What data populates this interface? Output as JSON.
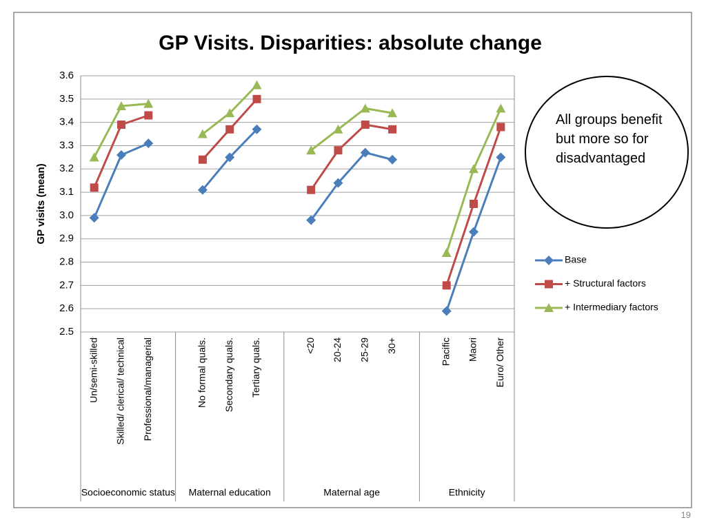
{
  "chart_data": {
    "type": "line",
    "title": "GP Visits. Disparities: absolute change",
    "y_label": "GP visits (mean)",
    "annotation": "All groups benefit but more so for disadvantaged",
    "page_number": "19",
    "categories": [
      "Un/semi-skilled",
      "Skilled/ clerical/ technical",
      "Professional/managerial",
      null,
      "No formal quals.",
      "Secondary quals.",
      "Tertiary quals.",
      null,
      "<20",
      "20-24",
      "25-29",
      "30+",
      null,
      "Pacific",
      "Maori",
      "Euro/ Other"
    ],
    "groups": [
      "Socioeconomic status",
      "Maternal education",
      "Maternal age",
      "Ethnicity"
    ],
    "series": [
      {
        "name": "Base",
        "color": "#4a7ebb",
        "marker": "diamond",
        "values": [
          2.99,
          3.26,
          3.31,
          null,
          3.11,
          3.25,
          3.37,
          null,
          2.98,
          3.14,
          3.27,
          3.24,
          null,
          2.59,
          2.93,
          3.25
        ]
      },
      {
        "name": "+ Structural factors",
        "color": "#be4b48",
        "marker": "square",
        "values": [
          3.12,
          3.39,
          3.43,
          null,
          3.24,
          3.37,
          3.5,
          null,
          3.11,
          3.28,
          3.39,
          3.37,
          null,
          2.7,
          3.05,
          3.38
        ]
      },
      {
        "name": "+ Intermediary factors",
        "color": "#98b954",
        "marker": "triangle",
        "values": [
          3.25,
          3.47,
          3.48,
          null,
          3.35,
          3.44,
          3.56,
          null,
          3.28,
          3.37,
          3.46,
          3.44,
          null,
          2.84,
          3.2,
          3.46
        ]
      }
    ],
    "ylim": [
      2.5,
      3.6
    ],
    "yticks": [
      2.5,
      2.6,
      2.7,
      2.8,
      2.9,
      {
        "value": 3.0,
        "label": "3.0"
      },
      3.1,
      3.2,
      3.3,
      3.4,
      3.5,
      3.6
    ],
    "grid": true
  }
}
